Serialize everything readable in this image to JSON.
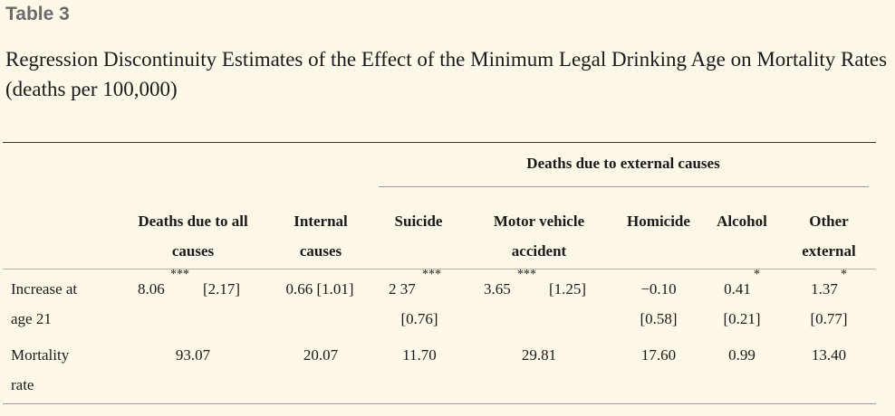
{
  "label": "Table 3",
  "title": "Regression Discontinuity Estimates of the Effect of the Minimum Legal Drinking Age on Mortality Rates (deaths per 100,000)",
  "group_header": "Deaths due to external causes",
  "columns": [
    {
      "line1": "Deaths due to all",
      "line2": "causes"
    },
    {
      "line1": "Internal",
      "line2": "causes"
    },
    {
      "line1": "Suicide",
      "line2": ""
    },
    {
      "line1": "Motor vehicle",
      "line2": "accident"
    },
    {
      "line1": "Homicide",
      "line2": ""
    },
    {
      "line1": "Alcohol",
      "line2": ""
    },
    {
      "line1": "Other",
      "line2": "external"
    }
  ],
  "rows": [
    {
      "label_line1": "Increase at",
      "label_line2": "age 21",
      "cells": [
        {
          "value": "8.06",
          "stars": "***",
          "se": "[2.17]"
        },
        {
          "value": "0.66 [1.01]",
          "stars": "",
          "se": ""
        },
        {
          "value": "2 37",
          "stars": "***",
          "se": "[0.76]"
        },
        {
          "value": "3.65",
          "stars": "***",
          "se": "[1.25]"
        },
        {
          "value": "−0.10",
          "stars": "",
          "se": "[0.58]"
        },
        {
          "value": "0.41",
          "stars": "*",
          "se": "[0.21]"
        },
        {
          "value": "1.37",
          "stars": "*",
          "se": "[0.77]"
        }
      ]
    },
    {
      "label_line1": "Mortality",
      "label_line2": "rate",
      "cells": [
        "93.07",
        "20.07",
        "11.70",
        "29.81",
        "17.60",
        "0.99",
        "13.40"
      ]
    }
  ]
}
